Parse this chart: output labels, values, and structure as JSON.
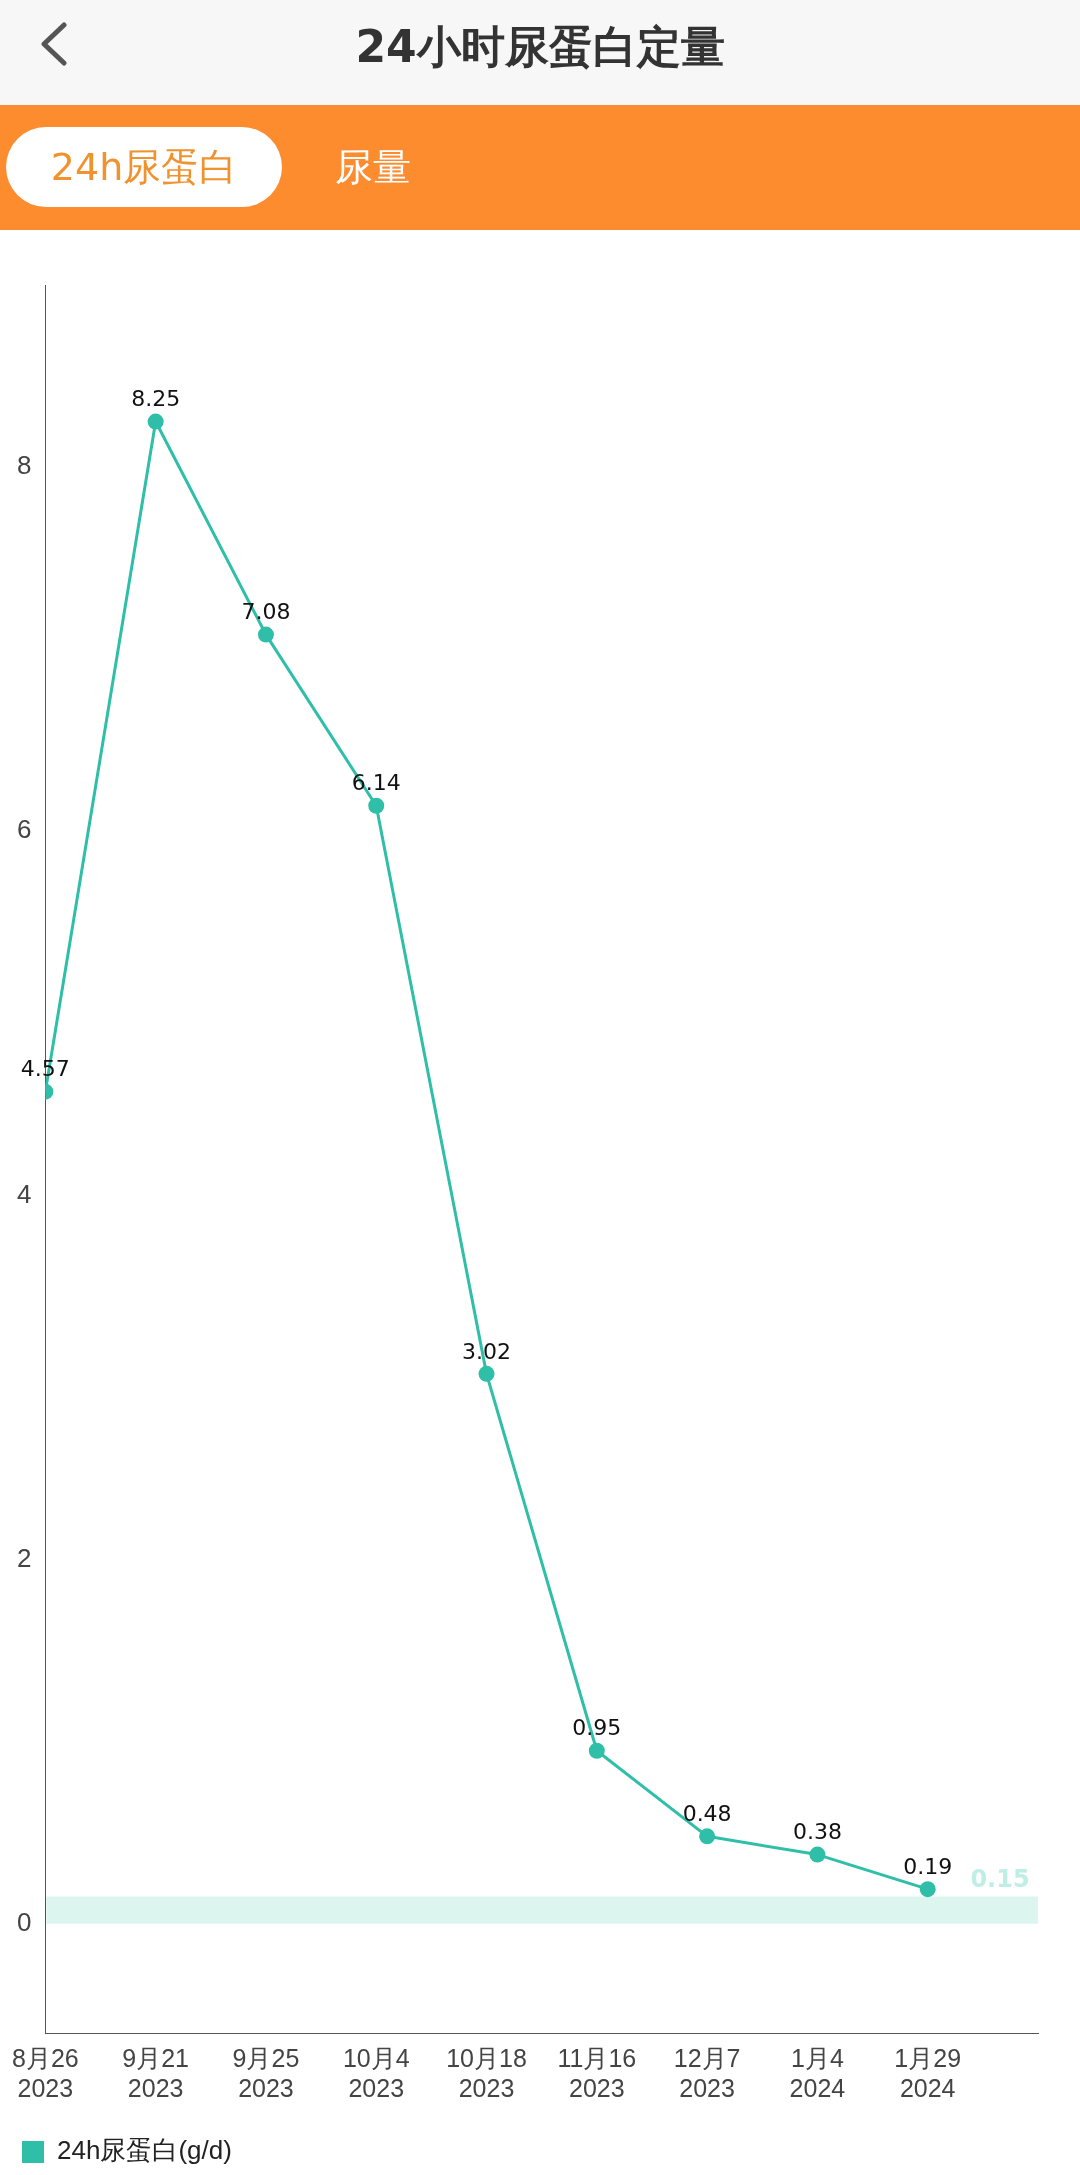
{
  "chart_data": {
    "type": "line",
    "title": "24小时尿蛋白定量",
    "annotations": [
      "24h尿蛋白",
      "尿量"
    ],
    "categories": [
      "8月26\n2023",
      "9月21\n2023",
      "9月25\n2023",
      "10月4\n2023",
      "10月18\n2023",
      "11月16\n2023",
      "12月7\n2023",
      "1月4\n2024",
      "1月29\n2024"
    ],
    "series": [
      {
        "name": "24h尿蛋白(g/d)",
        "color": "#2fbfa8",
        "values": [
          4.57,
          8.25,
          7.08,
          6.14,
          3.02,
          0.95,
          0.48,
          0.38,
          0.19
        ]
      }
    ],
    "ylim": [
      -0.6,
      9
    ],
    "yticks": [
      0,
      2,
      4,
      6,
      8
    ],
    "grid": false,
    "legend": "bottom left",
    "marker": "circle",
    "data_labels": true,
    "bands": [
      {
        "axis": "y",
        "from": 0,
        "to": 0.15,
        "label": "0.15",
        "color": "#dcf5ef"
      }
    ]
  }
}
